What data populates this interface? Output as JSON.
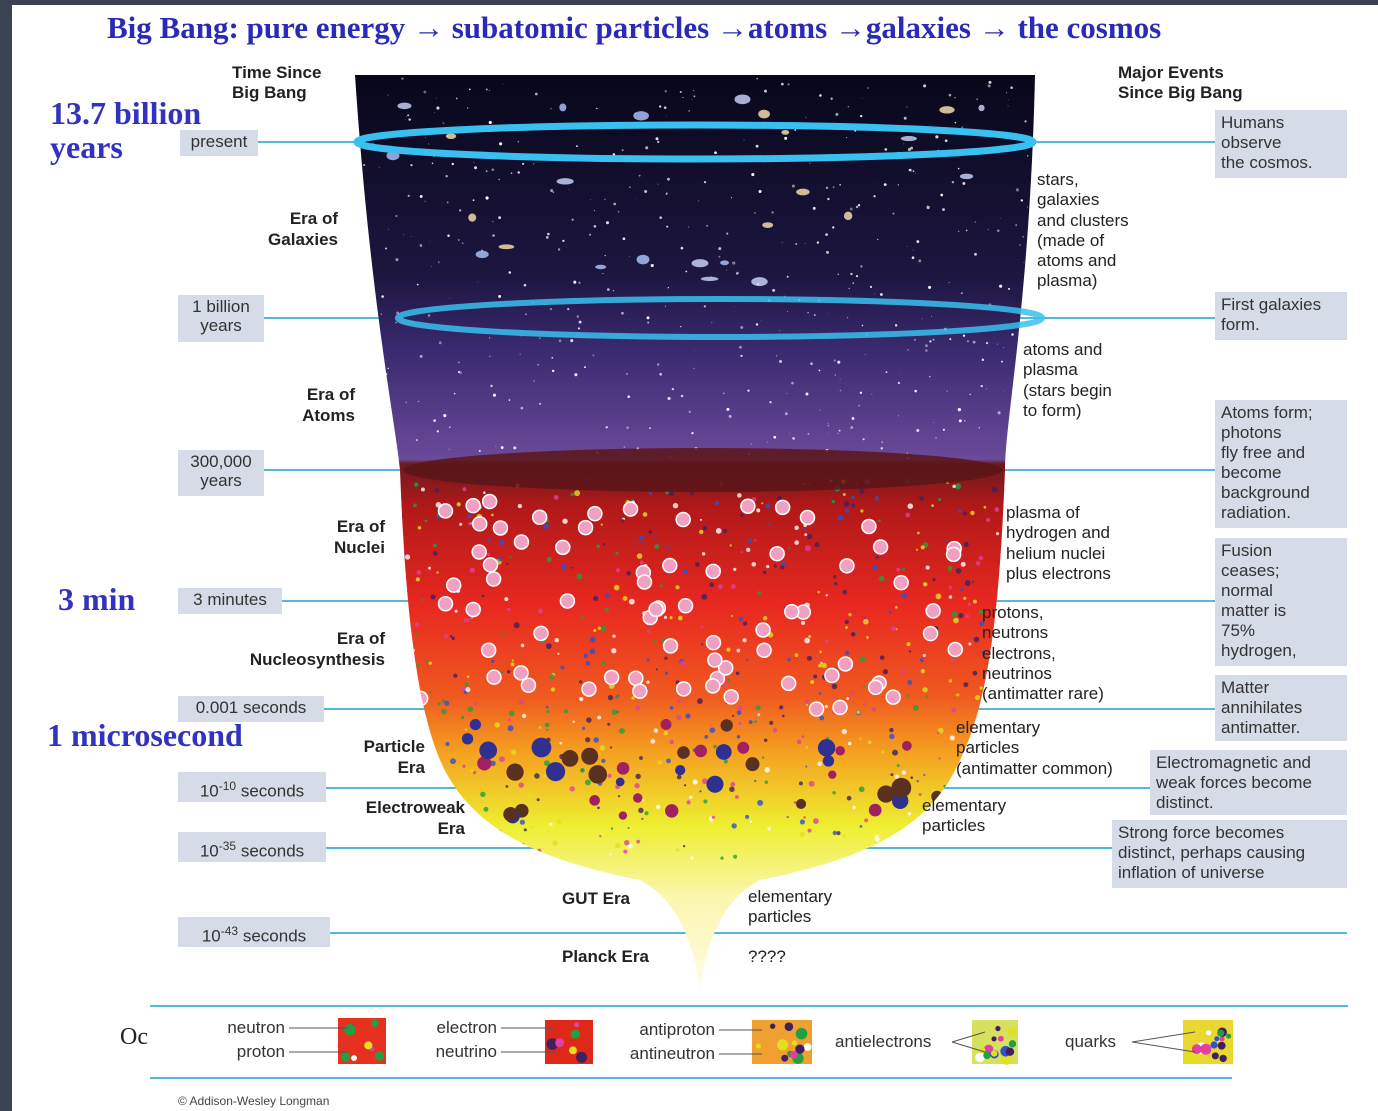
{
  "title": "Big Bang: pure energy → subatomic particles →atoms →galaxies  → the cosmos",
  "callouts": [
    [
      "13.7  billion",
      "years"
    ],
    [
      "3 min"
    ],
    [
      "1 microsecond"
    ]
  ],
  "time_header": [
    "Time Since",
    "Big Bang"
  ],
  "events_header": [
    "Major Events",
    "Since Big Bang"
  ],
  "time_markers": [
    {
      "label": "present"
    },
    {
      "label": "1 billion years"
    },
    {
      "label": "300,000 years"
    },
    {
      "label": "3 minutes"
    },
    {
      "label": "0.001 seconds"
    },
    {
      "base": "10",
      "exponent": "-10",
      "unit": "seconds"
    },
    {
      "base": "10",
      "exponent": "-35",
      "unit": "seconds"
    },
    {
      "base": "10",
      "exponent": "-43",
      "unit": "seconds"
    }
  ],
  "eras": [
    [
      "Era of",
      "Galaxies"
    ],
    [
      "Era of",
      "Atoms"
    ],
    [
      "Era of",
      "Nuclei"
    ],
    [
      "Era of",
      "Nucleosynthesis"
    ],
    [
      "Particle",
      "Era"
    ],
    [
      "Electroweak",
      "Era"
    ],
    [
      "GUT Era"
    ],
    [
      "Planck Era"
    ]
  ],
  "contents": [
    [
      "stars,",
      "galaxies",
      "and clusters",
      "(made of",
      "atoms and",
      "plasma)"
    ],
    [
      "atoms and",
      "plasma",
      "(stars begin",
      "to form)"
    ],
    [
      "plasma of",
      "hydrogen and",
      "helium nuclei",
      "plus electrons"
    ],
    [
      "protons,",
      "neutrons",
      "electrons,",
      "neutrinos",
      "(antimatter rare)"
    ],
    [
      "elementary",
      "particles",
      "(antimatter common)"
    ],
    [
      "elementary",
      "particles"
    ],
    [
      "elementary",
      "particles"
    ],
    [
      "????"
    ]
  ],
  "events": [
    [
      "Humans",
      "observe",
      "the cosmos."
    ],
    [
      "First galaxies",
      "form."
    ],
    [
      "Atoms form;",
      "photons",
      "fly free and",
      "become",
      "background",
      "radiation."
    ],
    [
      "Fusion",
      "ceases;",
      "normal",
      "matter is",
      "75%",
      "hydrogen,"
    ],
    [
      "Matter",
      "annihilates",
      "antimatter."
    ],
    [
      "Electromagnetic and",
      "weak forces become",
      "distinct."
    ],
    [
      "Strong force becomes",
      "distinct, perhaps causing",
      "inflation of universe"
    ]
  ],
  "legend_prefix": "Oc",
  "legend": [
    [
      "neutron",
      "proton"
    ],
    [
      "electron",
      "neutrino"
    ],
    [
      "antiproton",
      "antineutron"
    ],
    [
      "antielectrons"
    ],
    [
      "quarks"
    ]
  ],
  "credit": "© Addison-Wesley Longman"
}
